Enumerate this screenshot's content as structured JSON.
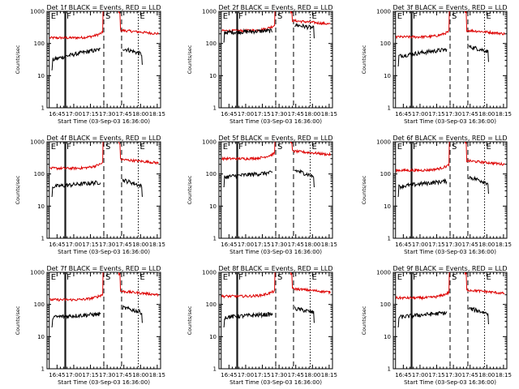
{
  "chart_data": {
    "type": "line",
    "layout": "3x3 grid of panels",
    "yscale": "log",
    "ylim": [
      1,
      1000
    ],
    "y_ticks": [
      "1",
      "10",
      "100",
      "1000"
    ],
    "ylabel": "Counts/sec",
    "xlabel": "Start Time (03-Sep-03 16:36:00)",
    "x_range_minutes": [
      0,
      102
    ],
    "x_ticks": [
      {
        "min": 9,
        "label": "16:45"
      },
      {
        "min": 24,
        "label": "17:00"
      },
      {
        "min": 39,
        "label": "17:15"
      },
      {
        "min": 54,
        "label": "17:30"
      },
      {
        "min": 69,
        "label": "17:45"
      },
      {
        "min": 84,
        "label": "18:00"
      },
      {
        "min": 99,
        "label": "18:15"
      }
    ],
    "markers": [
      {
        "label": "E",
        "min": 2,
        "line": "solid"
      },
      {
        "label": "F",
        "min": 16,
        "line": "solid"
      },
      {
        "label": "S",
        "min": 51,
        "line": "dashed"
      },
      {
        "label": "E",
        "min": 82,
        "line": "dotted"
      }
    ],
    "extra_lines": [
      {
        "min": 16.8,
        "line": "solid"
      },
      {
        "min": 67,
        "line": "dashed"
      }
    ],
    "series_colors": {
      "events": "#000000",
      "lld": "#dd0000"
    },
    "panels": [
      {
        "title": "Det 1f BLACK = Events, RED = LLD",
        "red": {
          "base": 150,
          "end": 200
        },
        "black": {
          "start": 30,
          "end": 65,
          "after_start": 70,
          "after_end": 45
        }
      },
      {
        "title": "Det 2f BLACK = Events, RED = LLD",
        "red": {
          "base": 250,
          "end": 400
        },
        "black": {
          "start": 220,
          "end": 250,
          "after_start": 380,
          "after_end": 300
        }
      },
      {
        "title": "Det 3f BLACK = Events, RED = LLD",
        "red": {
          "base": 160,
          "end": 200
        },
        "black": {
          "start": 40,
          "end": 65,
          "after_start": 80,
          "after_end": 55
        }
      },
      {
        "title": "Det 4f BLACK = Events, RED = LLD",
        "red": {
          "base": 150,
          "end": 220
        },
        "black": {
          "start": 40,
          "end": 55,
          "after_start": 65,
          "after_end": 40
        }
      },
      {
        "title": "Det 5f BLACK = Events, RED = LLD",
        "red": {
          "base": 300,
          "end": 400
        },
        "black": {
          "start": 80,
          "end": 110,
          "after_start": 130,
          "after_end": 80
        }
      },
      {
        "title": "Det 6f BLACK = Events, RED = LLD",
        "red": {
          "base": 130,
          "end": 200
        },
        "black": {
          "start": 40,
          "end": 60,
          "after_start": 80,
          "after_end": 50
        }
      },
      {
        "title": "Det 7f BLACK = Events, RED = LLD",
        "red": {
          "base": 140,
          "end": 200
        },
        "black": {
          "start": 40,
          "end": 50,
          "after_start": 80,
          "after_end": 55
        }
      },
      {
        "title": "Det 8f BLACK = Events, RED = LLD",
        "red": {
          "base": 180,
          "end": 240
        },
        "black": {
          "start": 40,
          "end": 50,
          "after_start": 75,
          "after_end": 55
        }
      },
      {
        "title": "Det 9f BLACK = Events, RED = LLD",
        "red": {
          "base": 160,
          "end": 220
        },
        "black": {
          "start": 40,
          "end": 55,
          "after_start": 75,
          "after_end": 50
        }
      }
    ]
  }
}
